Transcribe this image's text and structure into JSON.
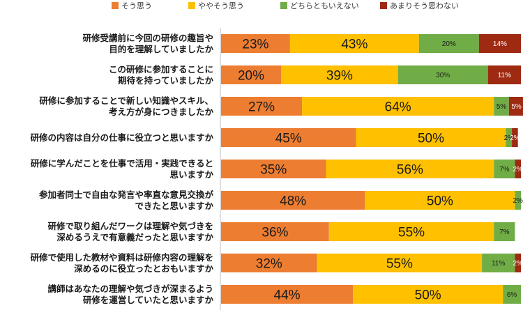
{
  "chart_data": {
    "type": "bar",
    "orientation": "horizontal",
    "stacked": true,
    "legend_position": "top",
    "grid": false,
    "xlim": [
      0,
      100
    ],
    "categories": [
      [
        "研修受講前に今回の研修の趣旨や",
        "目的を理解していましたか"
      ],
      [
        "この研修に参加することに",
        "期待を持っていましたか"
      ],
      [
        "研修に参加することで新しい知識やスキル、",
        "考え方が身につきましたか"
      ],
      [
        "研修の内容は自分の仕事に役立つと思いますか"
      ],
      [
        "研修に学んだことを仕事で活用・実践できると",
        "思いますか"
      ],
      [
        "参加者同士で自由な発言や率直な意見交換が",
        "できたと思いますか"
      ],
      [
        "研修で取り組んだワークは理解や気づきを",
        "深めるうえで有意義だったと思いますか"
      ],
      [
        "研修で使用した教材や資料は研修内容の理解を",
        "深めるのに役立ったとおもいますか"
      ],
      [
        "講師はあなたの理解や気づきが深まるよう",
        "研修を運営していたと思いますか"
      ]
    ],
    "series": [
      {
        "name": "そう思う",
        "color": "#ed7d31",
        "values": [
          23,
          20,
          27,
          45,
          35,
          48,
          36,
          32,
          44
        ]
      },
      {
        "name": "ややそう思う",
        "color": "#ffc000",
        "values": [
          43,
          39,
          64,
          50,
          56,
          50,
          55,
          55,
          50
        ]
      },
      {
        "name": "どちらともいえない",
        "color": "#70ad47",
        "values": [
          20,
          30,
          5,
          2,
          7,
          2,
          7,
          11,
          6
        ]
      },
      {
        "name": "あまりそう思わない",
        "color": "#9e2a12",
        "values": [
          14,
          11,
          5,
          2,
          2,
          0,
          0,
          2,
          0
        ]
      }
    ],
    "value_suffix": "%"
  }
}
